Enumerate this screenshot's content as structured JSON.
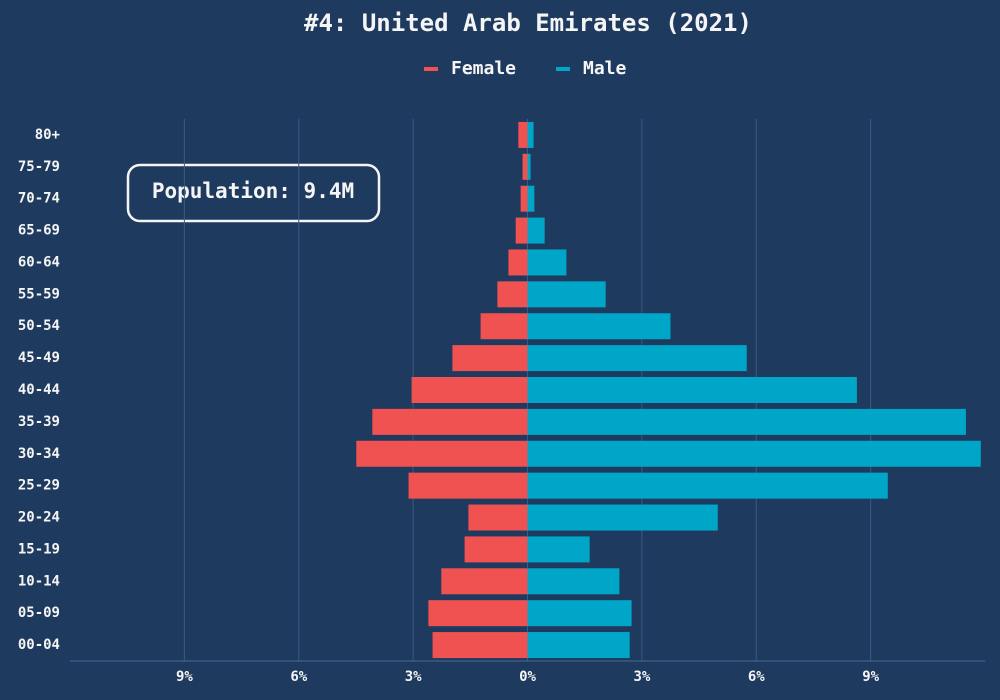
{
  "chart_data": {
    "type": "pyramid",
    "title": "#4: United Arab Emirates (2021)",
    "annotation": "Population: 9.4M",
    "categories": [
      "00-04",
      "05-09",
      "10-14",
      "15-19",
      "20-24",
      "25-29",
      "30-34",
      "35-39",
      "40-44",
      "45-49",
      "50-54",
      "55-59",
      "60-64",
      "65-69",
      "70-74",
      "75-79",
      "80+"
    ],
    "series": [
      {
        "name": "Female",
        "color": "#f05252",
        "values": [
          -2.49,
          -2.6,
          -2.26,
          -1.65,
          -1.55,
          -3.12,
          -4.49,
          -4.07,
          -3.04,
          -1.97,
          -1.23,
          -0.79,
          -0.5,
          -0.31,
          -0.18,
          -0.13,
          -0.24
        ]
      },
      {
        "name": "Male",
        "color": "#00a6c8",
        "values": [
          2.68,
          2.73,
          2.41,
          1.63,
          4.99,
          9.45,
          11.89,
          11.5,
          8.64,
          5.75,
          3.75,
          2.05,
          1.02,
          0.45,
          0.18,
          0.08,
          0.16
        ]
      }
    ],
    "xlim": [
      -12,
      12
    ],
    "xticks": [
      {
        "value": -9,
        "label": "9%"
      },
      {
        "value": -6,
        "label": "6%"
      },
      {
        "value": -3,
        "label": "3%"
      },
      {
        "value": 0,
        "label": "0%"
      },
      {
        "value": 3,
        "label": "3%"
      },
      {
        "value": 6,
        "label": "6%"
      },
      {
        "value": 9,
        "label": "9%"
      }
    ],
    "grid": true
  }
}
